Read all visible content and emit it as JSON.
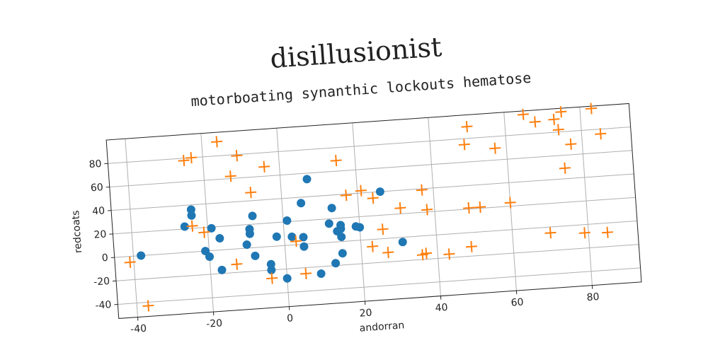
{
  "chart_data": {
    "type": "scatter",
    "title": "disillusionist",
    "subtitle": "motorboating synanthic lockouts hematose",
    "x_label": "andorran",
    "y_label": "redcoats",
    "xlim": [
      -45,
      93
    ],
    "ylim": [
      -52,
      100
    ],
    "xticks": [
      -40,
      -20,
      0,
      20,
      40,
      60,
      80
    ],
    "yticks": [
      -40,
      -20,
      0,
      20,
      40,
      60,
      80
    ],
    "grid": true,
    "series": [
      {
        "color": "#1f77b4",
        "marker": "circle",
        "x": [
          -38,
          -24,
          -24,
          -26,
          -21,
          -20,
          -19,
          -17,
          -17,
          -9,
          -9,
          -8,
          -8,
          -10,
          -4,
          -4,
          -2,
          0,
          1,
          2,
          5,
          5,
          5,
          7,
          9,
          12,
          13,
          13,
          14,
          15,
          15,
          15,
          15,
          19,
          20,
          26,
          31
        ],
        "y": [
          0,
          36,
          31,
          22,
          0,
          -5,
          19,
          -17,
          10,
          16,
          12,
          27,
          -7,
          3,
          -15,
          -20,
          8,
          -28,
          21,
          7,
          -2,
          35,
          6,
          55,
          -26,
          16,
          -18,
          29,
          9,
          14,
          11,
          -10,
          4,
          12,
          11,
          40,
          -4
        ]
      },
      {
        "color": "#ff7f0e",
        "marker": "plus",
        "x": [
          -41,
          -37,
          -25,
          -23,
          -24,
          -21,
          -16,
          -13,
          -13,
          -11,
          -8,
          -4,
          -4,
          3,
          5,
          15,
          17,
          21,
          23,
          24,
          26,
          27,
          31,
          36,
          37,
          37,
          38,
          43,
          49,
          49,
          49,
          50,
          52,
          57,
          60,
          65,
          75,
          83,
          68,
          73,
          74,
          77,
          85,
          75,
          70,
          79,
          85
        ],
        "y": [
          -5,
          -43,
          78,
          80,
          22,
          16,
          92,
          62,
          -13,
          79,
          47,
          68,
          -27,
          3,
          -25,
          69,
          39,
          42,
          -6,
          35,
          8,
          -12,
          25,
          -16,
          -15,
          39,
          22,
          -17,
          -12,
          21,
          75,
          90,
          21,
          70,
          23,
          97,
          97,
          98,
          90,
          91,
          82,
          69,
          76,
          49,
          -5,
          -7,
          -8
        ]
      }
    ]
  }
}
